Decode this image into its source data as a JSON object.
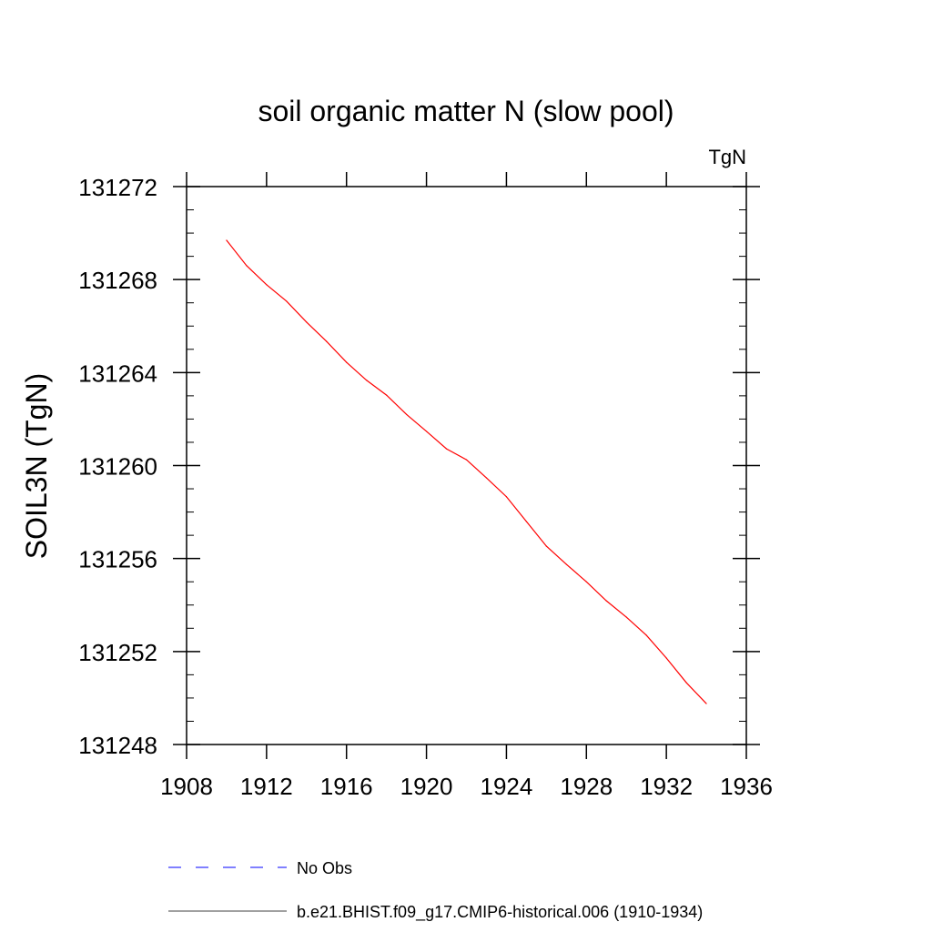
{
  "chart_data": {
    "type": "line",
    "title": "soil organic matter N (slow pool)",
    "units_label": "TgN",
    "ylabel": "SOIL3N  (TgN)",
    "xlabel": "",
    "xlim": [
      1908,
      1936
    ],
    "ylim": [
      131248,
      131272
    ],
    "xticks": [
      1908,
      1912,
      1916,
      1920,
      1924,
      1928,
      1932,
      1936
    ],
    "yticks": [
      131248,
      131252,
      131256,
      131260,
      131264,
      131268,
      131272
    ],
    "grid": false,
    "legend_placement": "bottom",
    "legend": [
      {
        "label": "No Obs",
        "style": "dashed",
        "color": "#0000ff"
      },
      {
        "label": "b.e21.BHIST.f09_g17.CMIP6-historical.006 (1910-1934)",
        "style": "solid",
        "color": "#000000"
      }
    ],
    "series": [
      {
        "color": "#ff0000",
        "x": [
          1910,
          1911,
          1912,
          1913,
          1914,
          1915,
          1916,
          1917,
          1918,
          1919,
          1920,
          1921,
          1922,
          1923,
          1924,
          1925,
          1926,
          1927,
          1928,
          1929,
          1930,
          1931,
          1932,
          1933,
          1934
        ],
        "y": [
          131269.69,
          131268.6,
          131267.78,
          131267.07,
          131266.17,
          131265.34,
          131264.44,
          131263.67,
          131263.03,
          131262.2,
          131261.47,
          131260.72,
          131260.25,
          131259.47,
          131258.66,
          131257.59,
          131256.53,
          131255.75,
          131255.0,
          131254.18,
          131253.48,
          131252.7,
          131251.72,
          131250.66,
          131249.76
        ]
      }
    ]
  }
}
